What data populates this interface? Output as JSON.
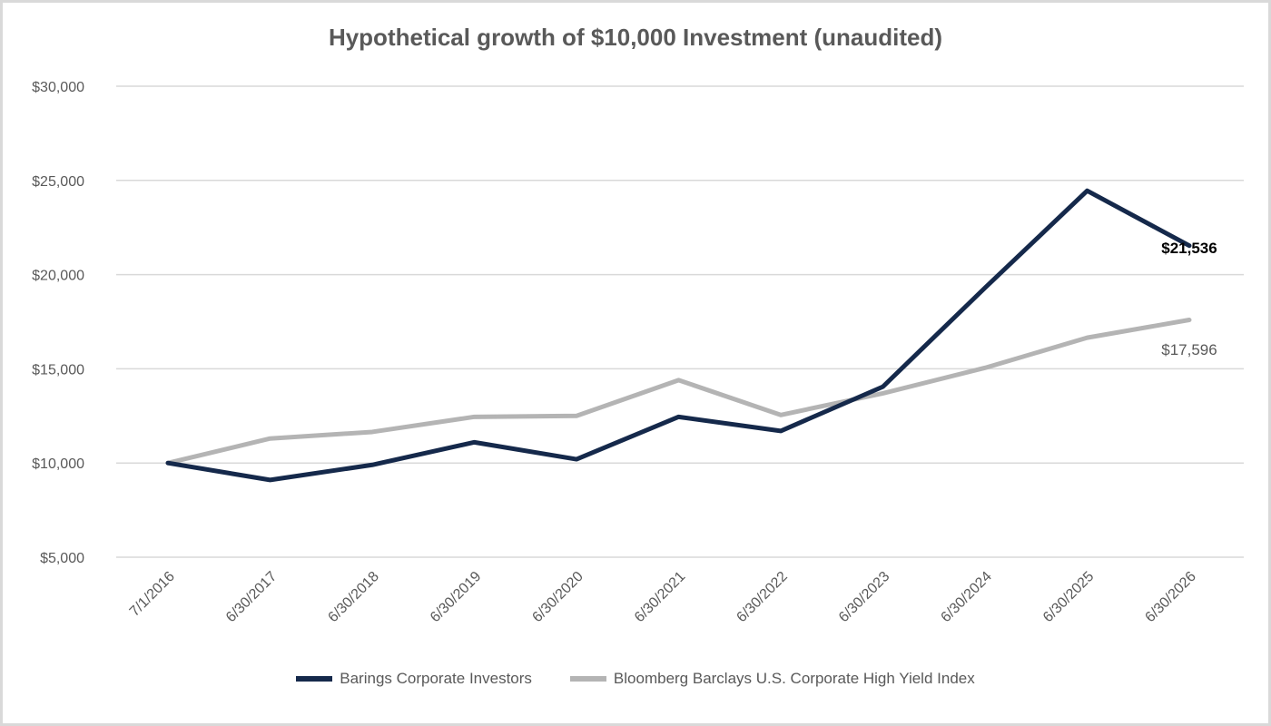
{
  "chart_data": {
    "type": "line",
    "title": "Hypothetical growth of $10,000 Investment (unaudited)",
    "categories": [
      "7/1/2016",
      "6/30/2017",
      "6/30/2018",
      "6/30/2019",
      "6/30/2020",
      "6/30/2021",
      "6/30/2022",
      "6/30/2023",
      "6/30/2024",
      "6/30/2025",
      "6/30/2026"
    ],
    "ylim": [
      5000,
      30000
    ],
    "yticks": [
      5000,
      10000,
      15000,
      20000,
      25000,
      30000
    ],
    "ytick_labels": [
      "$5,000",
      "$10,000",
      "$15,000",
      "$20,000",
      "$25,000",
      "$30,000"
    ],
    "grid": true,
    "legend_position": "bottom",
    "series": [
      {
        "name": "Barings Corporate Investors",
        "color": "#15294b",
        "values": [
          10000,
          9100,
          9900,
          11100,
          10200,
          12450,
          11700,
          14050,
          19300,
          24450,
          21536
        ],
        "end_label": "$21,536"
      },
      {
        "name": "Bloomberg Barclays U.S. Corporate High Yield Index",
        "color": "#b4b4b4",
        "values": [
          10000,
          11300,
          11650,
          12450,
          12500,
          14400,
          12550,
          13700,
          15050,
          16650,
          17596
        ],
        "end_label": "$17,596"
      }
    ]
  }
}
